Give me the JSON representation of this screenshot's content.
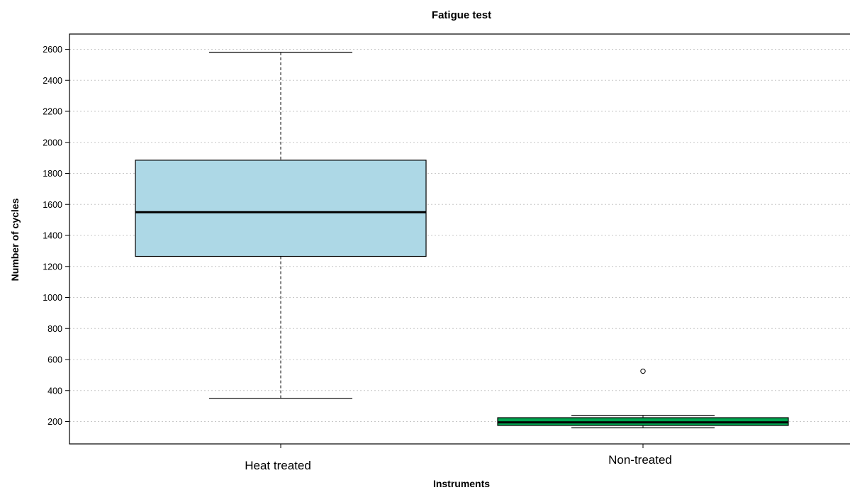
{
  "chart_data": {
    "type": "box",
    "title": "Fatigue test",
    "xlabel": "Instruments",
    "ylabel": "Number of cycles",
    "ylim": [
      60,
      2650
    ],
    "yticks": [
      200,
      400,
      600,
      800,
      1000,
      1200,
      1400,
      1600,
      1800,
      2000,
      2200,
      2400,
      2600
    ],
    "grid": "horizontal dotted",
    "categories": [
      "Heat treated",
      "Non-treated"
    ],
    "boxes": [
      {
        "category": "Heat treated",
        "whisker_low": 350,
        "q1": 1265,
        "median": 1550,
        "q3": 1885,
        "whisker_high": 2580,
        "outliers": [],
        "color": "#add8e6"
      },
      {
        "category": "Non-treated",
        "whisker_low": 160,
        "q1": 175,
        "median": 195,
        "q3": 225,
        "whisker_high": 240,
        "outliers": [
          525
        ],
        "color": "#00a550"
      }
    ]
  }
}
